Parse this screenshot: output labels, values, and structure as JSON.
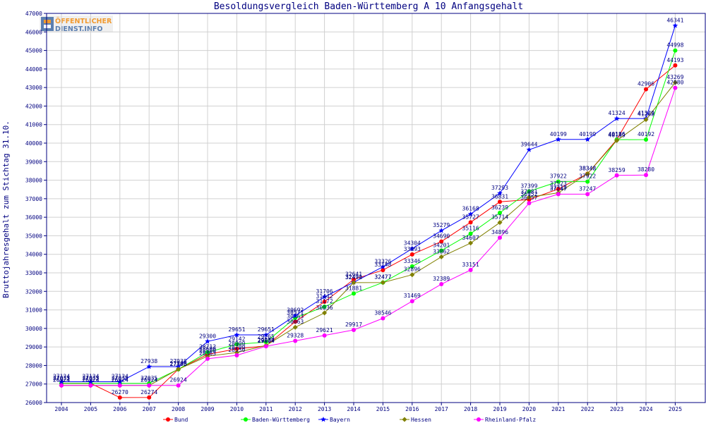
{
  "chart_data": {
    "type": "line",
    "title": "Besoldungsvergleich Baden-Württemberg A 10 Anfangsgehalt",
    "xlabel": "",
    "ylabel": "Bruttojahresgehalt zum Stichtag 31.10.",
    "x": [
      "2004",
      "2005",
      "2006",
      "2007",
      "2008",
      "2009",
      "2010",
      "2011",
      "2012",
      "2013",
      "2014",
      "2015",
      "2016",
      "2017",
      "2018",
      "2019",
      "2020",
      "2021",
      "2022",
      "2023",
      "2024",
      "2025"
    ],
    "ylim": [
      26000,
      47000
    ],
    "yticks": [
      26000,
      27000,
      28000,
      29000,
      30000,
      31000,
      32000,
      33000,
      34000,
      35000,
      36000,
      37000,
      38000,
      39000,
      40000,
      41000,
      42000,
      43000,
      44000,
      45000,
      46000,
      47000
    ],
    "grid": true,
    "legend_position": "bottom",
    "series": [
      {
        "name": "Bund",
        "color": "#ff0000",
        "marker": "circle",
        "values": [
          27033,
          27033,
          26270,
          26274,
          27796,
          28600,
          28900,
          29057,
          30363,
          31442,
          32641,
          33148,
          33993,
          34690,
          35727,
          36831,
          36952,
          37523,
          38348,
          40186,
          42906,
          44193
        ]
      },
      {
        "name": "Baden-Württemberg",
        "color": "#00ff00",
        "marker": "circle",
        "values": [
          27035,
          27035,
          27035,
          27035,
          27795,
          28712,
          29142,
          29265,
          30571,
          31172,
          31881,
          32477,
          33346,
          34201,
          35116,
          36239,
          37399,
          37922,
          37922,
          40186,
          40192,
          44998
        ]
      },
      {
        "name": "Bayern",
        "color": "#0000ff",
        "marker": "star",
        "values": [
          27124,
          27124,
          27124,
          27938,
          27938,
          29300,
          29651,
          29651,
          30692,
          31706,
          32491,
          33326,
          34304,
          35279,
          36168,
          37293,
          39644,
          40199,
          40199,
          41324,
          41329,
          46341
        ]
      },
      {
        "name": "Hessen",
        "color": "#808000",
        "marker": "diamond",
        "values": [
          26924,
          26924,
          26924,
          26924,
          27800,
          28500,
          28700,
          29080,
          30063,
          30836,
          32470,
          32477,
          32896,
          33862,
          34607,
          35714,
          37081,
          37318,
          38348,
          40139,
          41268,
          43269
        ]
      },
      {
        "name": "Rheinland-Pfalz",
        "color": "#ff00ff",
        "marker": "circle",
        "values": [
          26924,
          26924,
          26924,
          26924,
          26924,
          28363,
          28550,
          29034,
          29328,
          29621,
          29917,
          30546,
          31469,
          32389,
          33151,
          34896,
          36757,
          37247,
          37247,
          38259,
          38280,
          42980
        ]
      }
    ]
  },
  "logo": {
    "line1": "ÖFFENTLICHER",
    "line2": "DIENST.INFO"
  },
  "colors": {
    "frame": "#000080",
    "grid": "#d0d0d0",
    "axis_text": "#000080"
  }
}
